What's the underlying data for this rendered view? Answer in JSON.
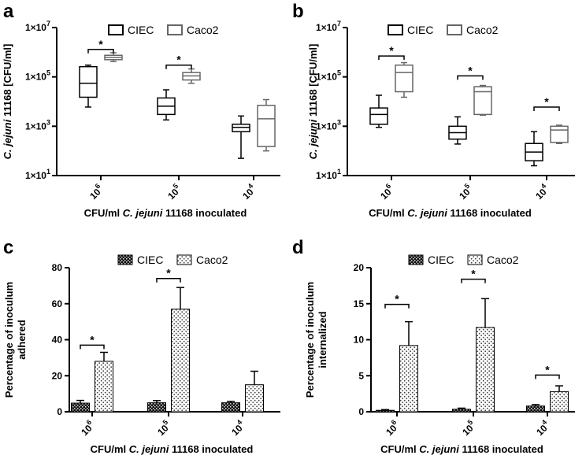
{
  "colors": {
    "ciec": "#000000",
    "caco2": "#666666",
    "axis": "#000000"
  },
  "panels": [
    {
      "letter": "a"
    },
    {
      "letter": "b"
    },
    {
      "letter": "c"
    },
    {
      "letter": "d"
    }
  ],
  "chart_data": [
    {
      "type": "boxplot",
      "panel": "a",
      "scale": "log",
      "ylabel_italic": "C. jejuni",
      "ylabel_rest": " 11168 [CFU/ml]",
      "xlabel_parts": [
        "CFU/ml ",
        "C. jejuni",
        " 11168 inoculated"
      ],
      "yticks": [
        {
          "base": "1×10",
          "exp": "1"
        },
        {
          "base": "1×10",
          "exp": "3"
        },
        {
          "base": "1×10",
          "exp": "5"
        },
        {
          "base": "1×10",
          "exp": "7"
        }
      ],
      "ylim_log10": [
        1,
        7
      ],
      "categories": [
        {
          "base": "10",
          "exp": "6"
        },
        {
          "base": "10",
          "exp": "5"
        },
        {
          "base": "10",
          "exp": "4"
        }
      ],
      "legend": [
        "CIEC",
        "Caco2"
      ],
      "series": [
        {
          "name": "CIEC",
          "boxes": [
            {
              "min": 6000,
              "q1": 15000,
              "median": 55000,
              "q3": 260000,
              "max": 300000
            },
            {
              "min": 1800,
              "q1": 3000,
              "median": 6500,
              "q3": 14000,
              "max": 30000
            },
            {
              "min": 50,
              "q1": 600,
              "median": 900,
              "q3": 1200,
              "max": 2600
            }
          ]
        },
        {
          "name": "Caco2",
          "boxes": [
            {
              "min": 420000,
              "q1": 500000,
              "median": 620000,
              "q3": 750000,
              "max": 950000
            },
            {
              "min": 55000,
              "q1": 75000,
              "median": 110000,
              "q3": 150000,
              "max": 210000
            },
            {
              "min": 100,
              "q1": 150,
              "median": 2000,
              "q3": 7000,
              "max": 12000
            }
          ]
        }
      ],
      "significance": [
        {
          "category": 0,
          "label": "*",
          "y": 1300000
        },
        {
          "category": 1,
          "label": "*",
          "y": 300000
        }
      ]
    },
    {
      "type": "boxplot",
      "panel": "b",
      "scale": "log",
      "ylabel_italic": "C. jejuni",
      "ylabel_rest": " 11168 [CFU/ml]",
      "xlabel_parts": [
        "CFU/ml ",
        "C. jejuni",
        " 11168 inoculated"
      ],
      "yticks": [
        {
          "base": "1×10",
          "exp": "1"
        },
        {
          "base": "1×10",
          "exp": "3"
        },
        {
          "base": "1×10",
          "exp": "5"
        },
        {
          "base": "1×10",
          "exp": "7"
        }
      ],
      "ylim_log10": [
        1,
        7
      ],
      "categories": [
        {
          "base": "10",
          "exp": "6"
        },
        {
          "base": "10",
          "exp": "5"
        },
        {
          "base": "10",
          "exp": "4"
        }
      ],
      "legend": [
        "CIEC",
        "Caco2"
      ],
      "series": [
        {
          "name": "CIEC",
          "boxes": [
            {
              "min": 900,
              "q1": 1200,
              "median": 3000,
              "q3": 5500,
              "max": 18000
            },
            {
              "min": 190,
              "q1": 300,
              "median": 550,
              "q3": 1000,
              "max": 2400
            },
            {
              "min": 25,
              "q1": 40,
              "median": 90,
              "q3": 200,
              "max": 600
            }
          ]
        },
        {
          "name": "Caco2",
          "boxes": [
            {
              "min": 15000,
              "q1": 25000,
              "median": 150000,
              "q3": 300000,
              "max": 380000
            },
            {
              "min": 2800,
              "q1": 3000,
              "median": 25000,
              "q3": 40000,
              "max": 45000
            },
            {
              "min": 200,
              "q1": 220,
              "median": 700,
              "q3": 1000,
              "max": 1100
            }
          ]
        }
      ],
      "significance": [
        {
          "category": 0,
          "label": "*",
          "y": 700000
        },
        {
          "category": 1,
          "label": "*",
          "y": 110000
        },
        {
          "category": 2,
          "label": "*",
          "y": 6000
        }
      ]
    },
    {
      "type": "bar",
      "panel": "c",
      "scale": "linear",
      "ylabel_lines": [
        "Percentage of inoculum",
        "adhered"
      ],
      "xlabel_parts": [
        "CFU/ml ",
        "C. jejuni",
        " 11168 inoculated"
      ],
      "ylim": [
        0,
        80
      ],
      "yticks": [
        0,
        20,
        40,
        60,
        80
      ],
      "categories": [
        {
          "base": "10",
          "exp": "6"
        },
        {
          "base": "10",
          "exp": "5"
        },
        {
          "base": "10",
          "exp": "4"
        }
      ],
      "legend": [
        "CIEC",
        "Caco2"
      ],
      "series": [
        {
          "name": "CIEC",
          "values": [
            4.8,
            5.0,
            5.0
          ],
          "errors": [
            1.5,
            1.2,
            0.8
          ]
        },
        {
          "name": "Caco2",
          "values": [
            28,
            57,
            15
          ],
          "errors": [
            5,
            12,
            7.5
          ]
        }
      ],
      "significance": [
        {
          "category": 0,
          "label": "*",
          "y": 37
        },
        {
          "category": 1,
          "label": "*",
          "y": 74
        }
      ]
    },
    {
      "type": "bar",
      "panel": "d",
      "scale": "linear",
      "ylabel_lines": [
        "Percentage of inoculum",
        "internalized"
      ],
      "xlabel_parts": [
        "CFU/ml ",
        "C. jejuni",
        " 11168 inoculated"
      ],
      "ylim": [
        0,
        20
      ],
      "yticks": [
        0,
        5,
        10,
        15,
        20
      ],
      "categories": [
        {
          "base": "10",
          "exp": "6"
        },
        {
          "base": "10",
          "exp": "5"
        },
        {
          "base": "10",
          "exp": "4"
        }
      ],
      "legend": [
        "CIEC",
        "Caco2"
      ],
      "series": [
        {
          "name": "CIEC",
          "values": [
            0.2,
            0.35,
            0.8
          ],
          "errors": [
            0.1,
            0.15,
            0.2
          ]
        },
        {
          "name": "Caco2",
          "values": [
            9.2,
            11.7,
            2.8
          ],
          "errors": [
            3.3,
            4.0,
            0.8
          ]
        }
      ],
      "significance": [
        {
          "category": 0,
          "label": "*",
          "y": 14.9
        },
        {
          "category": 1,
          "label": "*",
          "y": 18.4
        },
        {
          "category": 2,
          "label": "*",
          "y": 5.1
        }
      ]
    }
  ]
}
